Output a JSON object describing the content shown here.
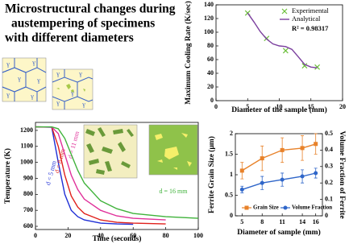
{
  "title_lines": [
    "Microstructural changes during",
    "austempering of specimens",
    "with different diameters"
  ],
  "micrograph_label": "γ",
  "chart_data": [
    {
      "type": "line",
      "xlabel": "Diameter of the sample (mm)",
      "ylabel": "Maximum Cooling Rate (K/sec)",
      "xlim": [
        0,
        20
      ],
      "xticks": [
        0,
        5,
        10,
        15,
        20
      ],
      "ylim": [
        0,
        140
      ],
      "yticks": [
        0,
        20,
        40,
        60,
        80,
        100,
        120,
        140
      ],
      "annotation": "R² = 0.98317",
      "legend": "top-right",
      "series": [
        {
          "name": "Experimental",
          "color": "#6bbf3a",
          "marker": "x",
          "line": false,
          "x": [
            5,
            8,
            11,
            14,
            16
          ],
          "values": [
            128,
            91,
            73,
            51,
            49
          ]
        },
        {
          "name": "Analytical",
          "color": "#7b3f9e",
          "line": true,
          "x": [
            5,
            6,
            7,
            8,
            9,
            10,
            11,
            12,
            13,
            14,
            15,
            16
          ],
          "values": [
            128,
            115,
            101,
            90,
            83,
            80,
            79,
            75,
            64,
            53,
            49,
            48
          ]
        }
      ]
    },
    {
      "type": "line",
      "xlabel": "Time (seconds)",
      "ylabel": "Temperature (K)",
      "xlim": [
        0,
        100
      ],
      "xticks": [
        0,
        20,
        40,
        60,
        80,
        100
      ],
      "ylim": [
        580,
        1250
      ],
      "yticks": [
        600,
        700,
        800,
        900,
        1000,
        1100,
        1200
      ],
      "x": [
        0,
        10,
        14,
        18,
        22,
        26,
        30,
        40,
        50,
        60,
        80,
        100
      ],
      "series": [
        {
          "name": "d = 5 mm",
          "color": "#1f2fd6",
          "line": true,
          "values": [
            1222,
            1220,
            1000,
            800,
            700,
            660,
            640,
            620,
            615,
            612,
            null,
            null
          ]
        },
        {
          "name": "d = 8 mm",
          "color": "#e0201b",
          "line": true,
          "values": [
            1222,
            1221,
            1100,
            920,
            790,
            720,
            680,
            640,
            625,
            620,
            615,
            null
          ]
        },
        {
          "name": "d = 11 mm",
          "color": "#e0309a",
          "line": true,
          "values": [
            1222,
            1221,
            1180,
            1050,
            920,
            830,
            770,
            700,
            665,
            650,
            640,
            null
          ]
        },
        {
          "name": "d = 16 mm",
          "color": "#3fb23a",
          "line": true,
          "values": [
            1222,
            1222,
            1210,
            1150,
            1050,
            950,
            870,
            760,
            710,
            680,
            660,
            650
          ]
        }
      ]
    },
    {
      "type": "line",
      "xlabel": "Diameter of sample (mm)",
      "ylabel": "Ferrite Grain Size (μm)",
      "y2label": "Volume Fraction of Ferrite",
      "xlim": [
        4,
        17
      ],
      "xticks": [
        5,
        8,
        11,
        14,
        16
      ],
      "ylim": [
        0,
        2
      ],
      "yticks": [
        0,
        {
          "value": 0.5,
          "label": "0.5"
        },
        1,
        {
          "value": 1.5,
          "label": "1.5"
        },
        2
      ],
      "y2lim": [
        0,
        0.5
      ],
      "y2ticks": [
        0,
        0.1,
        0.2,
        0.3,
        0.4,
        0.5
      ],
      "legend": "bottom",
      "x": [
        5,
        8,
        11,
        14,
        16
      ],
      "series": [
        {
          "name": "Grain Size",
          "color": "#e8822a",
          "marker": "square",
          "line": true,
          "values": [
            1.1,
            1.4,
            1.6,
            1.65,
            1.75
          ],
          "errors": [
            0.2,
            0.3,
            0.3,
            0.3,
            0.25
          ]
        },
        {
          "name": "Volume Fraction",
          "color": "#2f66c9",
          "marker": "circle",
          "line": true,
          "axis": "y2",
          "values": [
            0.16,
            0.2,
            0.22,
            0.24,
            0.26
          ],
          "errors": [
            0.02,
            0.04,
            0.04,
            0.04,
            0.03
          ]
        }
      ]
    }
  ]
}
